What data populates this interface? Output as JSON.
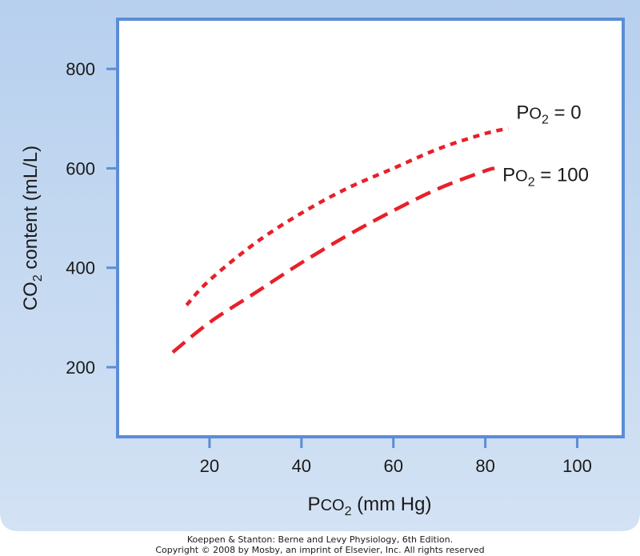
{
  "chart_data": {
    "type": "line",
    "title": "",
    "xlabel": {
      "main": "P",
      "sub_main": "CO",
      "subscript": "2",
      "rest": " (mm Hg)"
    },
    "ylabel": {
      "main": "CO",
      "subscript": "2",
      "rest": " content (mL/L)"
    },
    "xlim": [
      0,
      110
    ],
    "ylim": [
      60,
      900
    ],
    "xticks": [
      20,
      40,
      60,
      80,
      100
    ],
    "yticks": [
      200,
      400,
      600,
      800
    ],
    "grid": false,
    "series": [
      {
        "name": {
          "main": "P",
          "sub_main": "O",
          "subscript": "2",
          "rest": " = 0"
        },
        "color": "#e8202a",
        "dash": "short",
        "x": [
          15,
          20,
          30,
          40,
          50,
          60,
          70,
          80,
          85
        ],
        "y": [
          325,
          375,
          450,
          510,
          560,
          600,
          640,
          670,
          680
        ]
      },
      {
        "name": {
          "main": "P",
          "sub_main": "O",
          "subscript": "2",
          "rest": " = 100"
        },
        "color": "#e8202a",
        "dash": "long",
        "x": [
          12,
          20,
          30,
          40,
          50,
          60,
          70,
          80,
          82
        ],
        "y": [
          230,
          290,
          350,
          410,
          465,
          515,
          560,
          595,
          600
        ]
      }
    ]
  },
  "colors": {
    "panel_background": "#c5d9f0",
    "plot_border": "#5b8dd6",
    "series_color": "#e8202a"
  },
  "credit": {
    "line1": "Koeppen & Stanton: Berne and Levy Physiology, 6th Edition.",
    "line2": "Copyright © 2008 by Mosby, an imprint of Elsevier, Inc. All rights reserved"
  }
}
